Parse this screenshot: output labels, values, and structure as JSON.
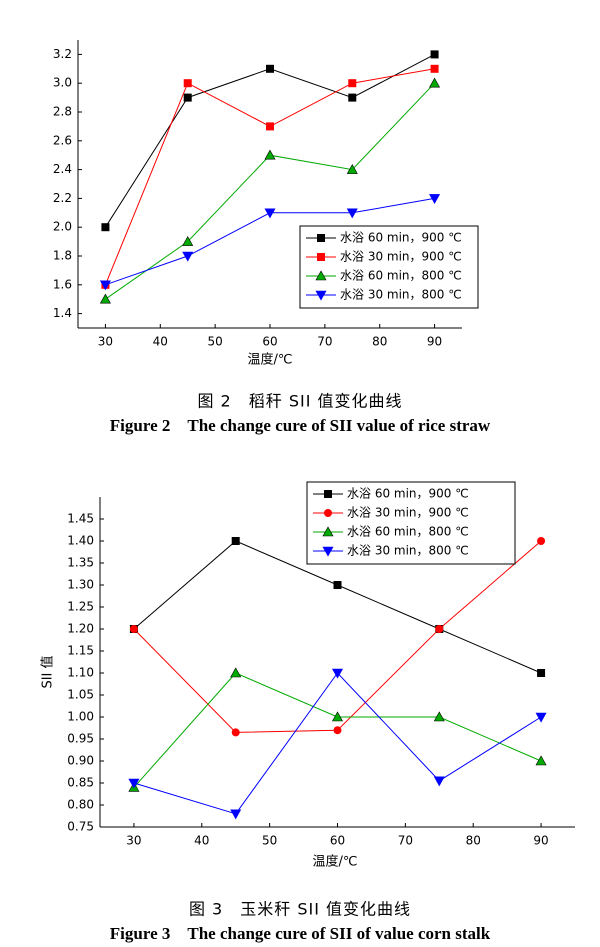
{
  "chart_data": [
    {
      "type": "line",
      "x_label": "温度/℃",
      "x": [
        30,
        45,
        60,
        75,
        90
      ],
      "xlim": [
        25,
        95
      ],
      "xticks": [
        30,
        40,
        50,
        60,
        70,
        80,
        90
      ],
      "ylim": [
        1.3,
        3.3
      ],
      "yticks": [
        1.4,
        1.6,
        1.8,
        {
          "value": 2.0,
          "label": "2.0"
        },
        2.2,
        2.4,
        2.6,
        2.8,
        {
          "value": 3.0,
          "label": "3.0"
        },
        3.2
      ],
      "grid": false,
      "legend": "lower right",
      "series": [
        {
          "name": "水浴 60 min，900 ℃",
          "color": "#000000",
          "marker": "square",
          "values": [
            2.0,
            2.9,
            3.1,
            2.9,
            3.2
          ]
        },
        {
          "name": "水浴 30 min，900 ℃",
          "color": "#ff0000",
          "marker": "square",
          "values": [
            1.6,
            3.0,
            2.7,
            3.0,
            3.1
          ]
        },
        {
          "name": "水浴 60 min，800 ℃",
          "color": "#00aa00",
          "marker": "triangle-up",
          "values": [
            1.5,
            1.9,
            2.5,
            2.4,
            3.0
          ]
        },
        {
          "name": "水浴 30 min，800 ℃",
          "color": "#0000ff",
          "marker": "triangle-down",
          "values": [
            1.6,
            1.8,
            2.1,
            2.1,
            2.2
          ]
        }
      ]
    },
    {
      "type": "line",
      "x_label": "温度/℃",
      "y_label": "SII 值",
      "x": [
        30,
        45,
        60,
        75,
        90
      ],
      "xlim": [
        25,
        95
      ],
      "xticks": [
        30,
        40,
        50,
        60,
        70,
        80,
        90
      ],
      "ylim": [
        0.75,
        1.5
      ],
      "yticks": [
        0.75,
        {
          "value": 0.8,
          "label": "0.80"
        },
        0.85,
        {
          "value": 0.9,
          "label": "0.90"
        },
        0.95,
        {
          "value": 1.0,
          "label": "1.00"
        },
        1.05,
        {
          "value": 1.1,
          "label": "1.10"
        },
        1.15,
        {
          "value": 1.2,
          "label": "1.20"
        },
        1.25,
        {
          "value": 1.3,
          "label": "1.30"
        },
        1.35,
        {
          "value": 1.4,
          "label": "1.40"
        },
        1.45
      ],
      "grid": false,
      "legend": "upper right",
      "series": [
        {
          "name": "水浴 60 min，900 ℃",
          "color": "#000000",
          "marker": "square",
          "values": [
            1.2,
            1.4,
            1.3,
            1.2,
            1.1
          ]
        },
        {
          "name": "水浴 30 min，900 ℃",
          "color": "#ff0000",
          "marker": "circle",
          "values": [
            1.2,
            0.965,
            0.97,
            1.2,
            1.4
          ]
        },
        {
          "name": "水浴 60 min，800 ℃",
          "color": "#00aa00",
          "marker": "triangle-up",
          "values": [
            0.84,
            1.1,
            1.0,
            1.0,
            0.9
          ]
        },
        {
          "name": "水浴 30 min，800 ℃",
          "color": "#0000ff",
          "marker": "triangle-down",
          "values": [
            0.85,
            0.78,
            1.1,
            0.855,
            1.0
          ]
        }
      ]
    }
  ],
  "captions": [
    {
      "cn": "图 2　稻秆 SII 值变化曲线",
      "en": "Figure 2　The change cure of SII value of rice straw"
    },
    {
      "cn": "图 3　玉米秆 SII 值变化曲线",
      "en": "Figure 3　The change cure of SII of value corn stalk"
    }
  ]
}
